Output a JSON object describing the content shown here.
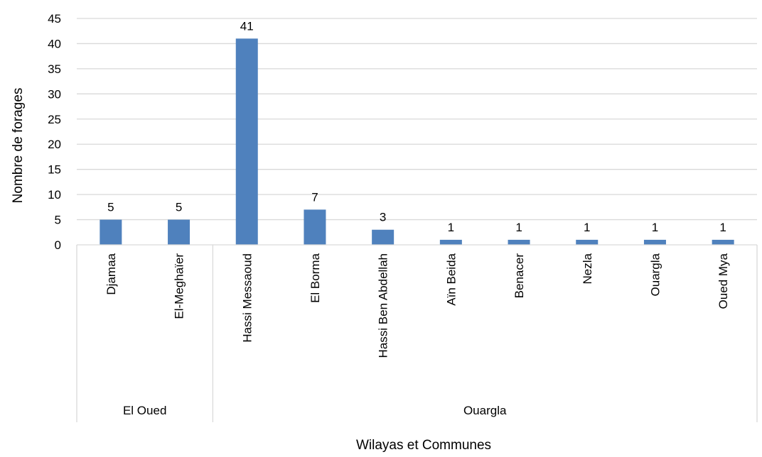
{
  "chart_data": {
    "type": "bar",
    "title": "",
    "xlabel": "Wilayas et Communes",
    "ylabel": "Nombre de forages",
    "ylim": [
      0,
      45
    ],
    "yticks": [
      0,
      5,
      10,
      15,
      20,
      25,
      30,
      35,
      40,
      45
    ],
    "grid": true,
    "legend": "none",
    "bar_color": "#4f81bd",
    "gridline_color": "#d9d9d9",
    "categories": [
      "Djamaa",
      "El-Meghaïer",
      "Hassi Messaoud",
      "El Borma",
      "Hassi Ben Abdellah",
      "Aïn Beida",
      "Benacer",
      "Nezla",
      "Ouargla",
      "Oued Mya"
    ],
    "groups": [
      {
        "label": "El Oued",
        "categories": [
          "Djamaa",
          "El-Meghaïer"
        ]
      },
      {
        "label": "Ouargla",
        "categories": [
          "Hassi Messaoud",
          "El Borma",
          "Hassi Ben Abdellah",
          "Aïn Beida",
          "Benacer",
          "Nezla",
          "Ouargla",
          "Oued Mya"
        ]
      }
    ],
    "values": [
      5,
      5,
      41,
      7,
      3,
      1,
      1,
      1,
      1,
      1
    ]
  }
}
